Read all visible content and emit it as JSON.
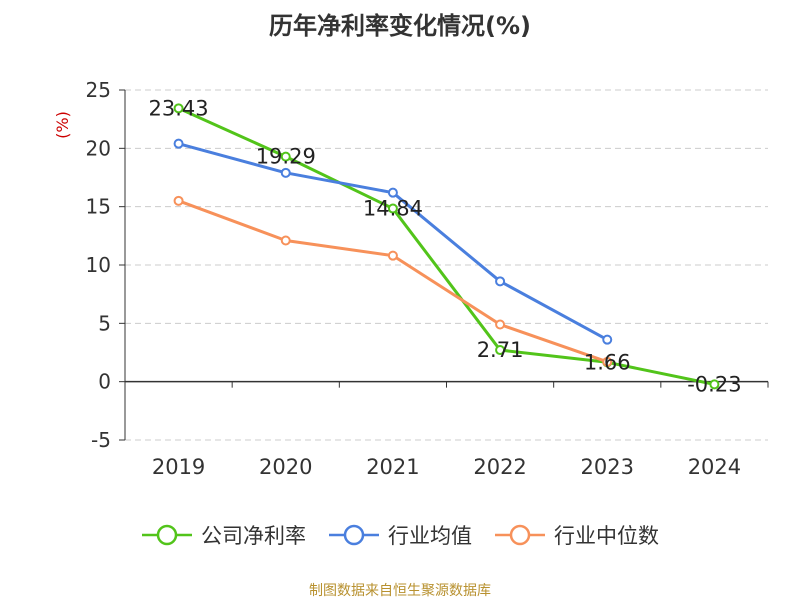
{
  "chart_data": {
    "type": "line",
    "title": "历年净利率变化情况(%)",
    "ylabel": "(%)",
    "xlabel": "",
    "categories": [
      "2019",
      "2020",
      "2021",
      "2022",
      "2023",
      "2024"
    ],
    "ylim": [
      -5,
      25
    ],
    "yticks": [
      -5,
      0,
      5,
      10,
      15,
      20,
      25
    ],
    "grid": true,
    "legend_position": "bottom",
    "series": [
      {
        "name": "公司净利率",
        "color": "#52c41a",
        "values": [
          23.43,
          19.29,
          14.84,
          2.71,
          1.66,
          -0.23
        ],
        "labels": [
          "23.43",
          "19.29",
          "14.84",
          "2.71",
          "1.66",
          "-0.23"
        ]
      },
      {
        "name": "行业均值",
        "color": "#4a7fde",
        "values": [
          20.4,
          17.9,
          16.2,
          8.6,
          3.6,
          null
        ]
      },
      {
        "name": "行业中位数",
        "color": "#f7915a",
        "values": [
          15.5,
          12.1,
          10.8,
          4.9,
          1.7,
          null
        ]
      }
    ]
  },
  "source": "制图数据来自恒生聚源数据库"
}
